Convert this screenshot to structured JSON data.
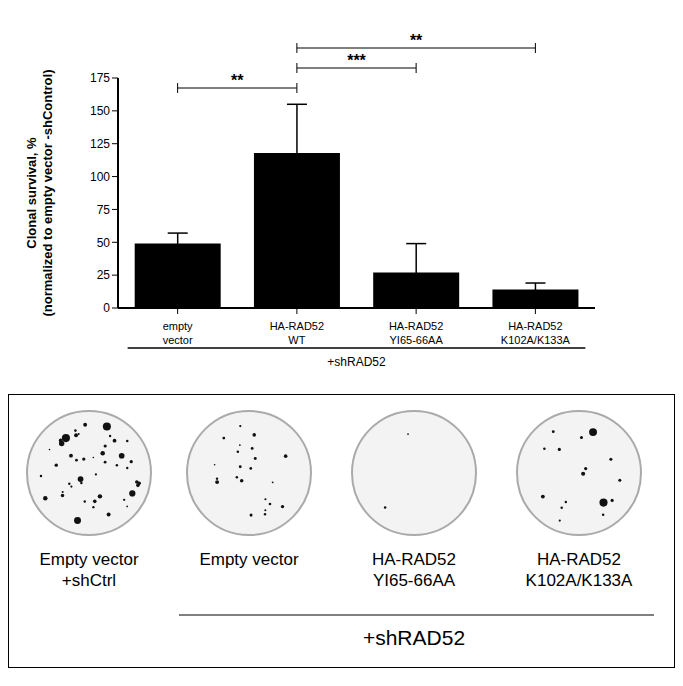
{
  "chart_data": {
    "type": "bar",
    "categories": [
      "empty vector",
      "HA-RAD52 WT",
      "HA-RAD52 YI65-66AA",
      "HA-RAD52 K102A/K133A"
    ],
    "values": [
      49,
      118,
      27,
      14
    ],
    "error": [
      8,
      37,
      22,
      5
    ],
    "color": "#000000",
    "ylabel": [
      "Clonal survival, %",
      "(normalized to empty vector -shControl)"
    ],
    "group_label": "+shRAD52",
    "ylim": [
      0,
      175
    ],
    "yticks": [
      0,
      25,
      50,
      75,
      100,
      125,
      150,
      175
    ],
    "grid": false,
    "significance": [
      {
        "from": 0,
        "to": 1,
        "label": "**"
      },
      {
        "from": 1,
        "to": 2,
        "label": "***"
      },
      {
        "from": 1,
        "to": 3,
        "label": "**"
      }
    ]
  },
  "image_panel": {
    "plates": [
      [
        "Empty vector",
        "+shCtrl"
      ],
      [
        "Empty vector"
      ],
      [
        "HA-RAD52",
        "YI65-66AA"
      ],
      [
        "HA-RAD52",
        "K102A/K133A"
      ]
    ],
    "group_label": "+shRAD52"
  }
}
